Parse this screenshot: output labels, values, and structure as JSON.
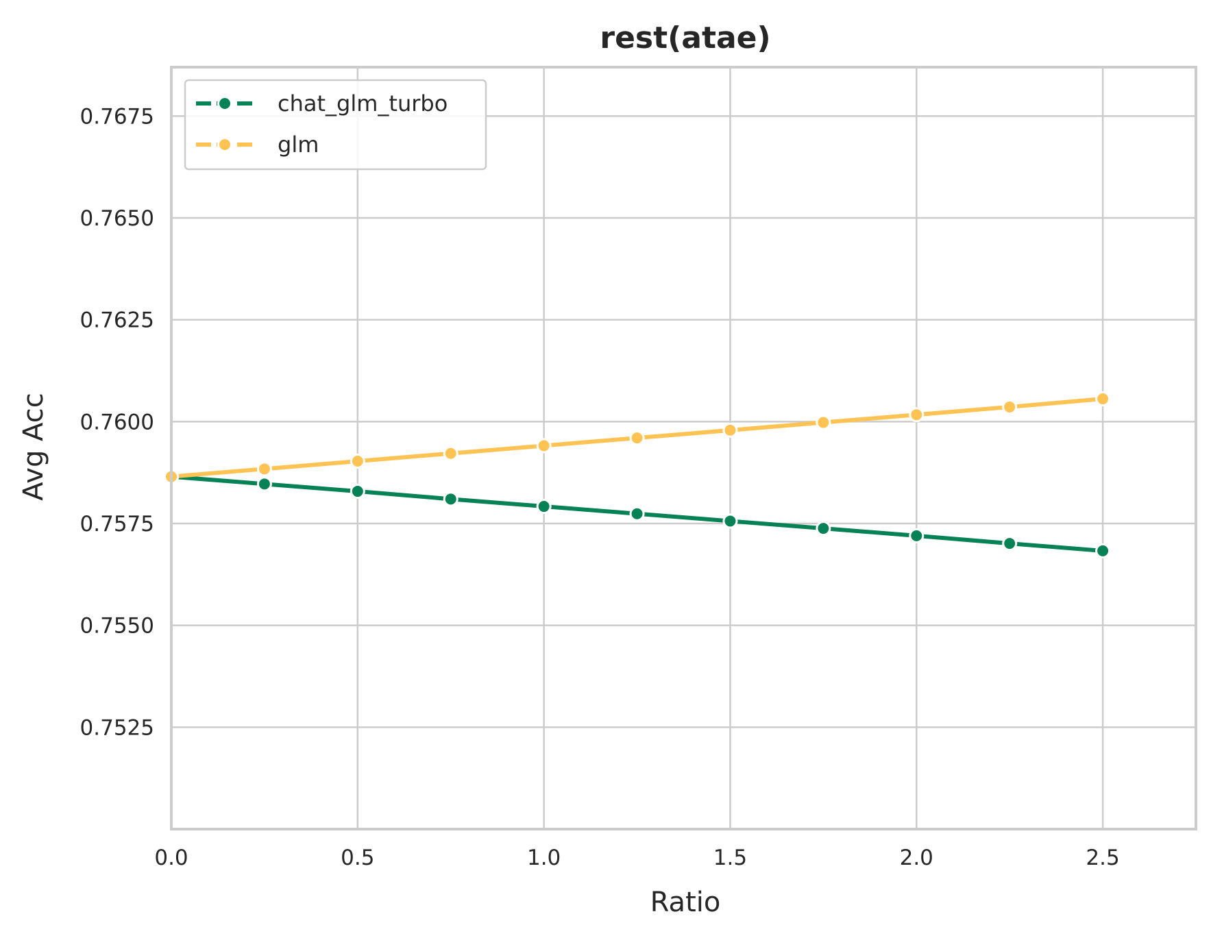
{
  "chart_data": {
    "type": "line",
    "title": "rest(atae)",
    "xlabel": "Ratio",
    "ylabel": "Avg Acc",
    "xlim": [
      0,
      2.75
    ],
    "ylim": [
      0.75,
      0.7687
    ],
    "xticks": [
      0,
      0.5,
      1.0,
      1.5,
      2.0,
      2.5
    ],
    "xtick_labels": [
      "0.0",
      "0.5",
      "1.0",
      "1.5",
      "2.0",
      "2.5"
    ],
    "yticks": [
      0.7525,
      0.755,
      0.7575,
      0.76,
      0.7625,
      0.765,
      0.7675
    ],
    "ytick_labels": [
      "0.7525",
      "0.7550",
      "0.7575",
      "0.7600",
      "0.7625",
      "0.7650",
      "0.7675"
    ],
    "grid": true,
    "legend_position": "top-left",
    "x": [
      0,
      0.25,
      0.5,
      0.75,
      1.0,
      1.25,
      1.5,
      1.75,
      2.0,
      2.25,
      2.5
    ],
    "series": [
      {
        "name": "chat_glm_turbo",
        "color": "#068256",
        "values": [
          0.75865,
          0.75847,
          0.75829,
          0.7581,
          0.75792,
          0.75774,
          0.75756,
          0.75738,
          0.7572,
          0.75701,
          0.75683
        ]
      },
      {
        "name": "glm",
        "color": "#FFC353",
        "values": [
          0.75865,
          0.75884,
          0.75903,
          0.75922,
          0.75941,
          0.7596,
          0.75979,
          0.75998,
          0.76017,
          0.76036,
          0.76056
        ]
      }
    ]
  }
}
